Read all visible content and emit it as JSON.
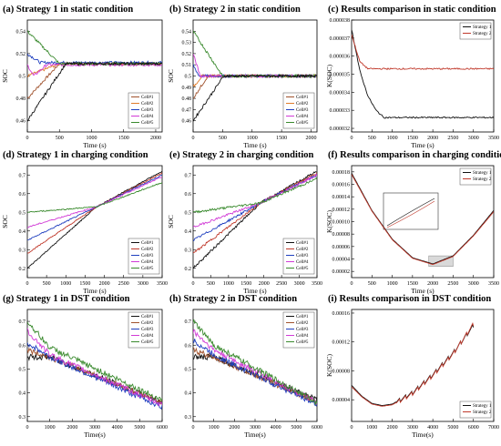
{
  "figure": {
    "background": "#ffffff",
    "panels_note_colors": {
      "black": "#111111",
      "red": "#c0392b",
      "blue": "#1f3fbf",
      "magenta": "#d13bd6",
      "green": "#3a8a2e",
      "brown": "#a0522d",
      "orange": "#e07b2a",
      "pinkband": "#f4a0f0"
    }
  },
  "chart_data": [
    {
      "id": "a",
      "type": "line",
      "title": "(a) Strategy 1 in static condition",
      "xlabel": "Time (s)",
      "ylabel": "SOC",
      "xlim": [
        0,
        2100
      ],
      "ylim": [
        0.45,
        0.55
      ],
      "xticks": [
        0,
        500,
        1000,
        1500,
        2000
      ],
      "yticks": [
        0.46,
        0.48,
        0.5,
        0.52,
        0.54
      ],
      "legend_position": "lower-right",
      "noise": 0.0012,
      "series": [
        {
          "name": "Cell#1",
          "color": "#a0522d",
          "x": [
            0,
            500,
            2100
          ],
          "y": [
            0.48,
            0.511,
            0.511
          ]
        },
        {
          "name": "Cell#2",
          "color": "#e07b2a",
          "x": [
            0,
            500,
            2100
          ],
          "y": [
            0.5,
            0.511,
            0.511
          ]
        },
        {
          "name": "Cell#3",
          "color": "#1f3fbf",
          "x": [
            0,
            200,
            2100
          ],
          "y": [
            0.52,
            0.512,
            0.512
          ]
        },
        {
          "name": "Cell#4",
          "color": "#d13bd6",
          "x": [
            0,
            100,
            300,
            2100
          ],
          "y": [
            0.51,
            0.5,
            0.51,
            0.51
          ]
        },
        {
          "name": "Cell#5",
          "color": "#3a8a2e",
          "x": [
            0,
            500,
            2100
          ],
          "y": [
            0.54,
            0.511,
            0.511
          ]
        },
        {
          "name": "",
          "color": "#111111",
          "x": [
            0,
            600,
            2100
          ],
          "y": [
            0.46,
            0.511,
            0.511
          ]
        }
      ]
    },
    {
      "id": "b",
      "type": "line",
      "title": "(b) Strategy 2 in static condition",
      "xlabel": "Time (s)",
      "ylabel": "SOC",
      "xlim": [
        0,
        2100
      ],
      "ylim": [
        0.45,
        0.55
      ],
      "xticks": [
        0,
        500,
        1000,
        1500,
        2000
      ],
      "yticks": [
        0.46,
        0.47,
        0.48,
        0.49,
        0.5,
        0.51,
        0.52,
        0.53,
        0.54
      ],
      "legend_position": "lower-right",
      "noise": 0.0012,
      "series": [
        {
          "name": "Cell#1",
          "color": "#a0522d",
          "x": [
            0,
            250,
            2100
          ],
          "y": [
            0.48,
            0.5,
            0.5
          ]
        },
        {
          "name": "Cell#2",
          "color": "#e07b2a",
          "x": [
            0,
            150,
            2100
          ],
          "y": [
            0.49,
            0.5,
            0.5
          ]
        },
        {
          "name": "Cell#3",
          "color": "#1f3fbf",
          "x": [
            0,
            100,
            2100
          ],
          "y": [
            0.51,
            0.5,
            0.5
          ]
        },
        {
          "name": "Cell#4",
          "color": "#d13bd6",
          "x": [
            0,
            120,
            2100
          ],
          "y": [
            0.52,
            0.5,
            0.5
          ]
        },
        {
          "name": "Cell#5",
          "color": "#3a8a2e",
          "x": [
            0,
            500,
            2100
          ],
          "y": [
            0.54,
            0.5,
            0.5
          ]
        },
        {
          "name": "",
          "color": "#111111",
          "x": [
            0,
            520,
            2100
          ],
          "y": [
            0.46,
            0.5,
            0.5
          ]
        }
      ]
    },
    {
      "id": "c",
      "type": "line",
      "title": "(c) Results comparison in static condition",
      "xlabel": "Time (s)",
      "ylabel": "K(SOC)",
      "xlim": [
        0,
        3500
      ],
      "ylim": [
        3.18e-05,
        3.8e-05
      ],
      "xticks": [
        0,
        500,
        1000,
        1500,
        2000,
        2500,
        3000,
        3500
      ],
      "yticks": [
        3.2e-05,
        3.3e-05,
        3.4e-05,
        3.5e-05,
        3.6e-05,
        3.7e-05,
        3.8e-05
      ],
      "ytick_labels": [
        "0.000032",
        "0.000033",
        "0.000034",
        "0.000035",
        "0.000036",
        "0.000037",
        "0.000038"
      ],
      "legend_position": "top-right",
      "noise": 4e-08,
      "series": [
        {
          "name": "Strategy 1",
          "color": "#111111",
          "x": [
            0,
            200,
            400,
            600,
            800,
            3500
          ],
          "y": [
            3.75e-05,
            3.52e-05,
            3.38e-05,
            3.3e-05,
            3.26e-05,
            3.26e-05
          ]
        },
        {
          "name": "Strategy 2",
          "color": "#c0392b",
          "x": [
            0,
            200,
            400,
            3500
          ],
          "y": [
            3.72e-05,
            3.57e-05,
            3.53e-05,
            3.53e-05
          ]
        }
      ]
    },
    {
      "id": "d",
      "type": "line",
      "title": "(d) Strategy 1 in charging condition",
      "xlabel": "Time (s)",
      "ylabel": "SOC",
      "xlim": [
        0,
        3500
      ],
      "ylim": [
        0.15,
        0.75
      ],
      "xticks": [
        0,
        500,
        1000,
        1500,
        2000,
        2500,
        3000,
        3500
      ],
      "yticks": [
        0.2,
        0.3,
        0.4,
        0.5,
        0.6,
        0.7
      ],
      "legend_position": "lower-right",
      "noise": 0.003,
      "series": [
        {
          "name": "Cell#1",
          "color": "#111111",
          "x": [
            0,
            1800,
            3500
          ],
          "y": [
            0.2,
            0.53,
            0.72
          ]
        },
        {
          "name": "Cell#2",
          "color": "#c0392b",
          "x": [
            0,
            1800,
            3500
          ],
          "y": [
            0.28,
            0.53,
            0.71
          ]
        },
        {
          "name": "Cell#3",
          "color": "#1f3fbf",
          "x": [
            0,
            1800,
            3500
          ],
          "y": [
            0.35,
            0.53,
            0.7
          ]
        },
        {
          "name": "Cell#4",
          "color": "#d13bd6",
          "x": [
            0,
            1800,
            3500
          ],
          "y": [
            0.42,
            0.53,
            0.69
          ]
        },
        {
          "name": "Cell#5",
          "color": "#3a8a2e",
          "x": [
            0,
            1800,
            3500
          ],
          "y": [
            0.5,
            0.53,
            0.66
          ]
        }
      ]
    },
    {
      "id": "e",
      "type": "line",
      "title": "(e) Strategy 2 in charging  condition",
      "xlabel": "Time (s)",
      "ylabel": "SOC",
      "xlim": [
        0,
        3500
      ],
      "ylim": [
        0.15,
        0.75
      ],
      "xticks": [
        0,
        500,
        1000,
        1500,
        2000,
        2500,
        3000,
        3500
      ],
      "yticks": [
        0.2,
        0.3,
        0.4,
        0.5,
        0.6,
        0.7
      ],
      "legend_position": "lower-right",
      "noise": 0.006,
      "series": [
        {
          "name": "Cell#1",
          "color": "#111111",
          "x": [
            0,
            1900,
            3500
          ],
          "y": [
            0.2,
            0.55,
            0.72
          ]
        },
        {
          "name": "Cell#2",
          "color": "#c0392b",
          "x": [
            0,
            1900,
            3500
          ],
          "y": [
            0.28,
            0.55,
            0.71
          ]
        },
        {
          "name": "Cell#3",
          "color": "#1f3fbf",
          "x": [
            0,
            1900,
            3500
          ],
          "y": [
            0.35,
            0.55,
            0.7
          ]
        },
        {
          "name": "Cell#4",
          "color": "#d13bd6",
          "x": [
            0,
            1900,
            3500
          ],
          "y": [
            0.42,
            0.55,
            0.7
          ]
        },
        {
          "name": "Cell#5",
          "color": "#3a8a2e",
          "x": [
            0,
            1900,
            3500
          ],
          "y": [
            0.5,
            0.55,
            0.68
          ]
        }
      ]
    },
    {
      "id": "f",
      "type": "line",
      "title": "(f) Results comparison in charging  condition",
      "xlabel": "Time (s)",
      "ylabel": "K(SOC)",
      "xlim": [
        0,
        3500
      ],
      "ylim": [
        1e-05,
        0.00019
      ],
      "xticks": [
        0,
        500,
        1000,
        1500,
        2000,
        2500,
        3000,
        3500
      ],
      "yticks": [
        2e-05,
        4e-05,
        6e-05,
        8e-05,
        0.0001,
        0.00012,
        0.00014,
        0.00016,
        0.00018
      ],
      "ytick_labels": [
        "0.00002",
        "0.00004",
        "0.00006",
        "0.00008",
        "0.00010",
        "0.00012",
        "0.00014",
        "0.00016",
        "0.00018"
      ],
      "legend_position": "top-right",
      "noise": 0,
      "inset": true,
      "series": [
        {
          "name": "Strategy 1",
          "color": "#111111",
          "x": [
            0,
            500,
            1000,
            1500,
            2000,
            2500,
            3000,
            3500
          ],
          "y": [
            0.000178,
            0.000118,
            7.2e-05,
            4.2e-05,
            3.2e-05,
            4.5e-05,
            7.8e-05,
            0.000118
          ]
        },
        {
          "name": "Strategy 2",
          "color": "#c0392b",
          "x": [
            0,
            500,
            1000,
            1500,
            2000,
            2500,
            3000,
            3500
          ],
          "y": [
            0.000176,
            0.000117,
            7.1e-05,
            4.1e-05,
            3.1e-05,
            4.4e-05,
            7.7e-05,
            0.000116
          ]
        }
      ]
    },
    {
      "id": "g",
      "type": "line",
      "title": "(g) Strategy 1 in DST condition",
      "xlabel": "Time(s)",
      "ylabel": "",
      "xlim": [
        0,
        6000
      ],
      "ylim": [
        0.28,
        0.75
      ],
      "xticks": [
        0,
        1000,
        2000,
        3000,
        4000,
        5000,
        6000
      ],
      "yticks": [
        0.3,
        0.4,
        0.5,
        0.6,
        0.7
      ],
      "legend_position": "top-right",
      "noise": 0.012,
      "series": [
        {
          "name": "Cell#1",
          "color": "#111111",
          "x": [
            0,
            1000,
            6000
          ],
          "y": [
            0.55,
            0.55,
            0.36
          ]
        },
        {
          "name": "Cell#2",
          "color": "#a0522d",
          "x": [
            0,
            1000,
            6000
          ],
          "y": [
            0.58,
            0.55,
            0.36
          ]
        },
        {
          "name": "Cell#3",
          "color": "#1f3fbf",
          "x": [
            0,
            1000,
            6000
          ],
          "y": [
            0.61,
            0.55,
            0.34
          ]
        },
        {
          "name": "Cell#4",
          "color": "#d13bd6",
          "x": [
            0,
            1000,
            6000
          ],
          "y": [
            0.66,
            0.56,
            0.35
          ]
        },
        {
          "name": "Cell#5",
          "color": "#3a8a2e",
          "x": [
            0,
            1000,
            6000
          ],
          "y": [
            0.7,
            0.59,
            0.37
          ]
        }
      ]
    },
    {
      "id": "h",
      "type": "line",
      "title": "(h) Strategy 2 in DST condition",
      "xlabel": "Time(s)",
      "ylabel": "",
      "xlim": [
        0,
        6000
      ],
      "ylim": [
        0.28,
        0.75
      ],
      "xticks": [
        0,
        1000,
        2000,
        3000,
        4000,
        5000,
        6000
      ],
      "yticks": [
        0.3,
        0.4,
        0.5,
        0.6,
        0.7
      ],
      "legend_position": "top-right",
      "noise": 0.012,
      "series": [
        {
          "name": "Cell#1",
          "color": "#111111",
          "x": [
            0,
            1000,
            6000
          ],
          "y": [
            0.55,
            0.55,
            0.37
          ]
        },
        {
          "name": "Cell#2",
          "color": "#a0522d",
          "x": [
            0,
            1000,
            6000
          ],
          "y": [
            0.58,
            0.55,
            0.36
          ]
        },
        {
          "name": "Cell#3",
          "color": "#1f3fbf",
          "x": [
            0,
            1000,
            6000
          ],
          "y": [
            0.62,
            0.56,
            0.35
          ]
        },
        {
          "name": "Cell#4",
          "color": "#d13bd6",
          "x": [
            0,
            1000,
            6000
          ],
          "y": [
            0.66,
            0.58,
            0.36
          ]
        },
        {
          "name": "Cell#5",
          "color": "#3a8a2e",
          "x": [
            0,
            1000,
            6000
          ],
          "y": [
            0.7,
            0.6,
            0.36
          ]
        }
      ]
    },
    {
      "id": "i",
      "type": "line",
      "title": "(i) Results comparison in DST condition",
      "xlabel": "Time(s)",
      "ylabel": "K(SOC)",
      "xlim": [
        0,
        7000
      ],
      "ylim": [
        1e-05,
        0.000165
      ],
      "xticks": [
        0,
        1000,
        2000,
        3000,
        4000,
        5000,
        6000,
        7000
      ],
      "yticks": [
        4e-05,
        8e-05,
        0.00012,
        0.00016
      ],
      "ytick_labels": [
        "0.00004",
        "0.00008",
        "0.00012",
        "0.00016"
      ],
      "legend_position": "lower-right",
      "noise": 0,
      "sawtooth": true,
      "series": [
        {
          "name": "Strategy 1",
          "color": "#111111",
          "x": [
            0,
            500,
            1000,
            1500,
            2000,
            3000,
            4000,
            5000,
            6000
          ],
          "y": [
            6e-05,
            4.5e-05,
            3.5e-05,
            3.2e-05,
            3.4e-05,
            5e-05,
            7.5e-05,
            0.000105,
            0.000143
          ]
        },
        {
          "name": "Strategy 2",
          "color": "#c0392b",
          "x": [
            0,
            500,
            1000,
            1500,
            2000,
            3000,
            4000,
            5000,
            6000
          ],
          "y": [
            5.8e-05,
            4.4e-05,
            3.4e-05,
            3.1e-05,
            3.3e-05,
            4.9e-05,
            7.4e-05,
            0.000104,
            0.000145
          ]
        }
      ]
    }
  ]
}
